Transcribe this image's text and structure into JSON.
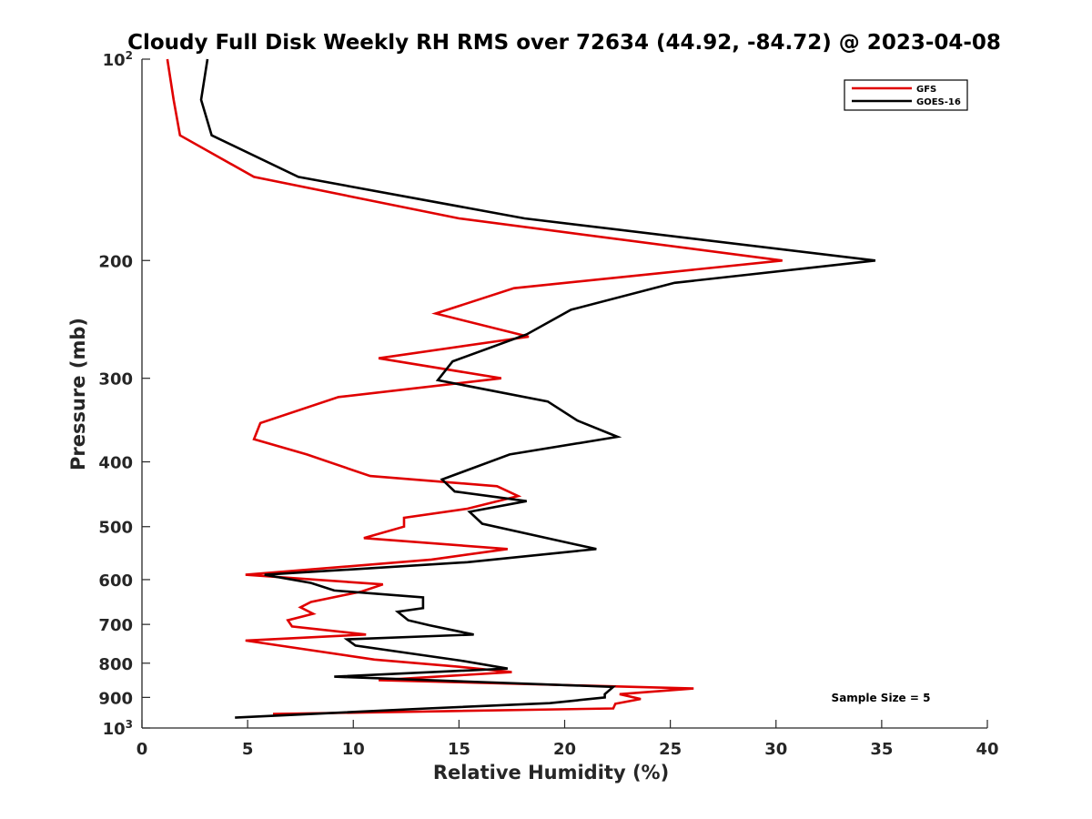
{
  "chart_data": {
    "type": "line",
    "title": "Cloudy Full Disk Weekly RH RMS over 72634 (44.92, -84.72) @ 2023-04-08",
    "xlabel": "Relative Humidity (%)",
    "ylabel": "Pressure (mb)",
    "xlim": [
      0,
      40
    ],
    "ylim": [
      100,
      1000
    ],
    "yscale": "log",
    "y_reversed": true,
    "grid": false,
    "legend_location": "top-right",
    "colors": {
      "GFS": "#e00000",
      "GOES-16": "#000000"
    },
    "x_ticks": [
      "0",
      "5",
      "10",
      "15",
      "20",
      "25",
      "30",
      "35",
      "40"
    ],
    "y_ticks": [
      {
        "value": 100,
        "base": "10",
        "exp": "2"
      },
      {
        "value": 200,
        "label": "200"
      },
      {
        "value": 300,
        "label": "300"
      },
      {
        "value": 400,
        "label": "400"
      },
      {
        "value": 500,
        "label": "500"
      },
      {
        "value": 600,
        "label": "600"
      },
      {
        "value": 700,
        "label": "700"
      },
      {
        "value": 800,
        "label": "800"
      },
      {
        "value": 900,
        "label": "900"
      },
      {
        "value": 1000,
        "base": "10",
        "exp": "3"
      }
    ],
    "series": [
      {
        "name": "GFS",
        "x": [
          1.2,
          1.5,
          1.8,
          5.3,
          15.0,
          30.3,
          17.6,
          13.9,
          18.3,
          11.2,
          17.0,
          9.3,
          5.6,
          5.3,
          7.8,
          10.8,
          16.8,
          17.8,
          15.4,
          12.4,
          12.4,
          10.5,
          17.3,
          13.7,
          4.9,
          11.4,
          10.4,
          8.0,
          7.5,
          8.1,
          6.9,
          7.1,
          10.6,
          4.9,
          11.0,
          15.0,
          17.5,
          11.2,
          26.1,
          22.6,
          23.6,
          22.4,
          22.3,
          6.2
        ],
        "y": [
          100,
          115,
          130,
          150,
          173,
          200,
          220,
          240,
          260,
          280,
          300,
          320,
          350,
          370,
          390,
          420,
          435,
          450,
          470,
          485,
          500,
          520,
          540,
          560,
          590,
          610,
          625,
          648,
          660,
          675,
          690,
          705,
          725,
          740,
          790,
          810,
          825,
          848,
          873,
          890,
          905,
          920,
          935,
          953
        ]
      },
      {
        "name": "GOES-16",
        "x": [
          3.1,
          2.8,
          3.3,
          7.4,
          18.1,
          34.7,
          25.2,
          20.3,
          18.2,
          14.7,
          14.0,
          19.2,
          20.6,
          22.5,
          17.4,
          14.2,
          14.8,
          18.2,
          15.5,
          16.1,
          21.5,
          15.4,
          5.8,
          8.0,
          9.1,
          13.3,
          13.3,
          12.1,
          12.6,
          13.6,
          15.7,
          9.7,
          10.1,
          15.1,
          17.3,
          9.1,
          22.3,
          21.9,
          21.9,
          19.3,
          13.5,
          4.4
        ],
        "y": [
          100,
          115,
          130,
          150,
          173,
          200,
          216,
          237,
          258,
          283,
          302,
          325,
          347,
          367,
          390,
          425,
          443,
          458,
          475,
          495,
          540,
          565,
          590,
          607,
          623,
          638,
          662,
          670,
          690,
          702,
          725,
          737,
          753,
          793,
          815,
          838,
          868,
          890,
          900,
          918,
          935,
          965
        ]
      }
    ],
    "annotation": "Sample Size = 5"
  }
}
